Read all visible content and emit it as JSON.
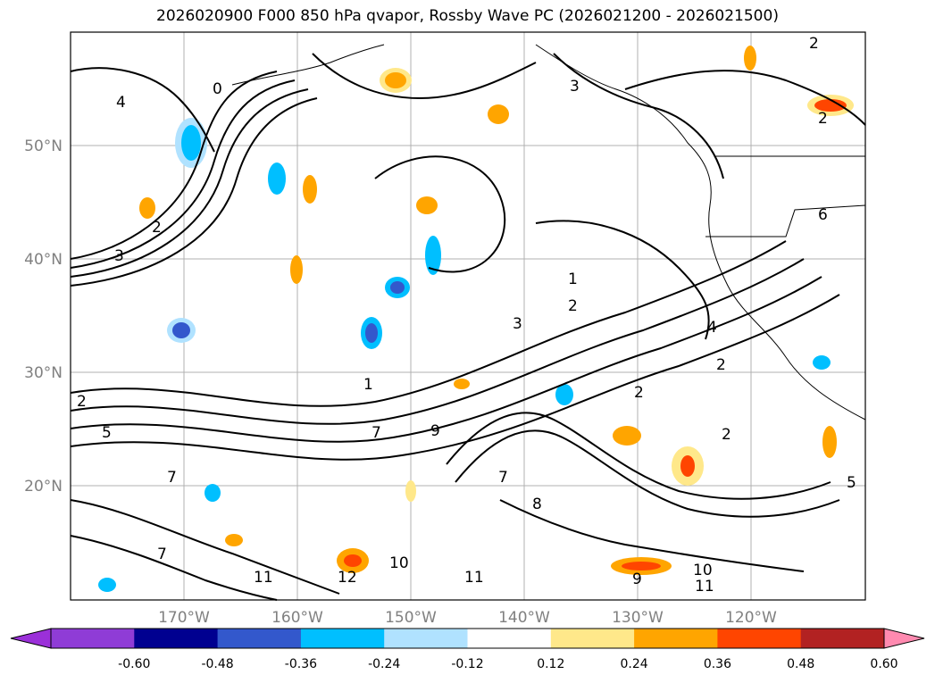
{
  "title": "2026020900 F000 850 hPa qvapor, Rossby Wave PC (2026021200 - 2026021500)",
  "map": {
    "lat_labels": [
      "50°N",
      "40°N",
      "30°N",
      "20°N"
    ],
    "lon_labels": [
      "170°W",
      "160°W",
      "150°W",
      "140°W",
      "130°W",
      "120°W"
    ],
    "contour_labels": [
      "2",
      "3",
      "4",
      "0",
      "1",
      "5",
      "6",
      "7",
      "8",
      "9",
      "10",
      "11",
      "12"
    ]
  },
  "colorbar": {
    "ticks": [
      "-0.60",
      "-0.48",
      "-0.36",
      "-0.24",
      "-0.12",
      "0.12",
      "0.24",
      "0.36",
      "0.48",
      "0.60"
    ],
    "colors": [
      "#9b30d9",
      "#8f3cd6",
      "#000090",
      "#3358cc",
      "#00bfff",
      "#b0e2ff",
      "#ffffff",
      "#ffe88a",
      "#ffa500",
      "#ff4500",
      "#b22222",
      "#ff8ab0"
    ]
  }
}
